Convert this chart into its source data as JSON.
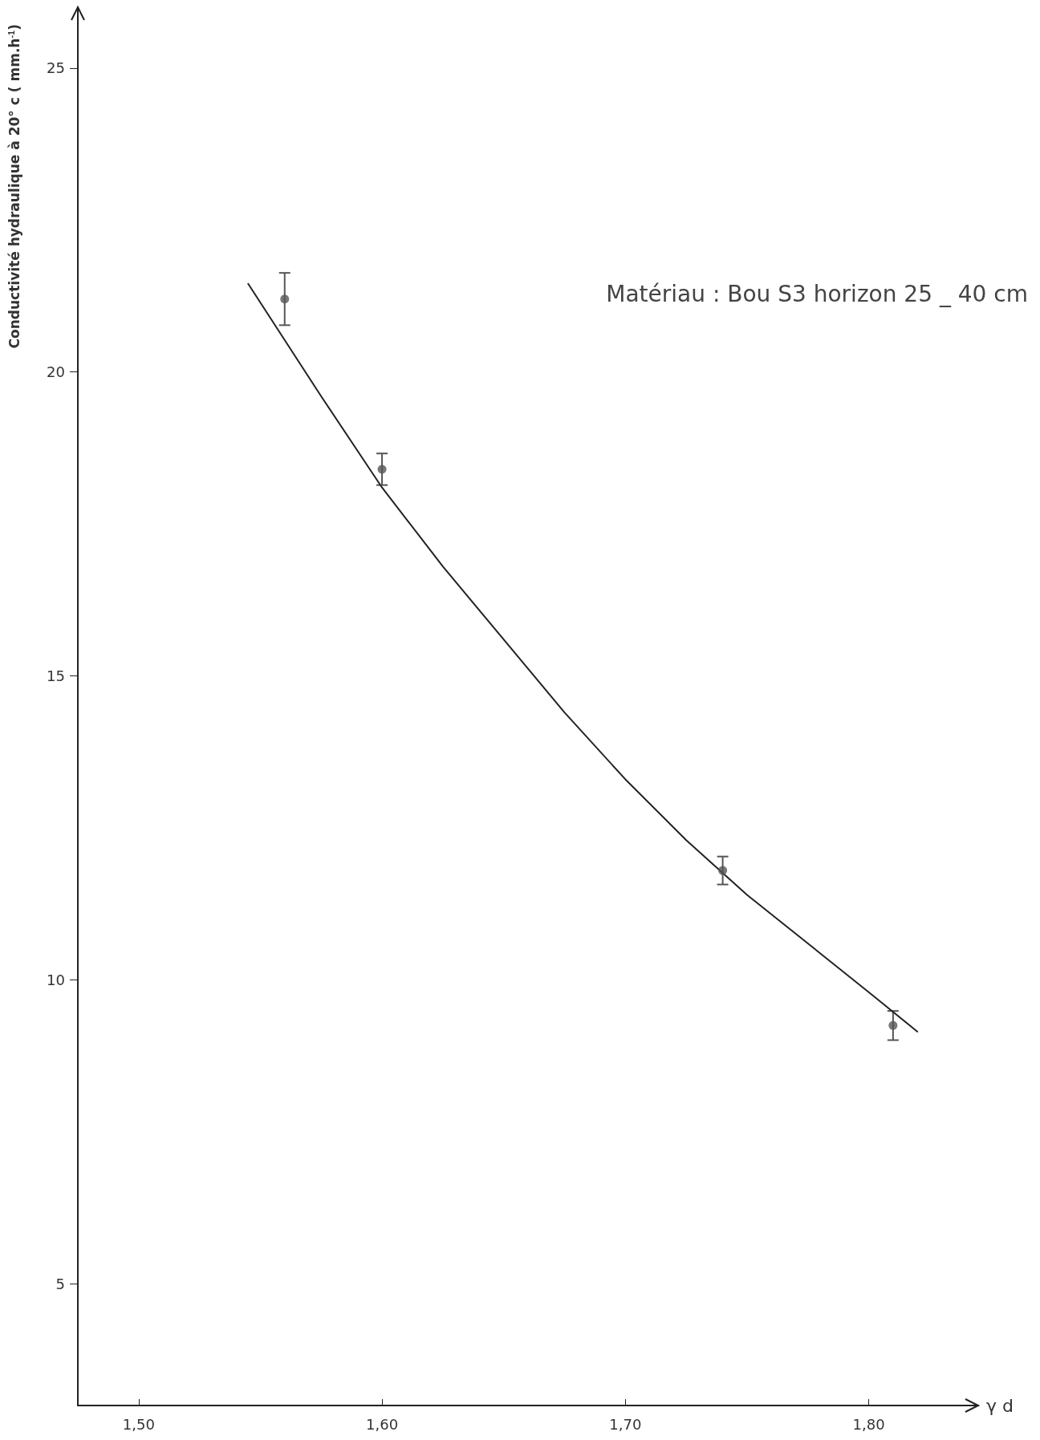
{
  "chart_data": {
    "type": "scatter",
    "xlabel": "γ d",
    "ylabel": "Conductivité hydraulique à 20° c ( mm.h$^{-1}$)",
    "annotations": [
      "Matériau : Bou S3 horizon 25 _ 40 cm"
    ],
    "xlim": [
      1.475,
      1.845
    ],
    "ylim": [
      3,
      26
    ],
    "xticks": [
      {
        "value": 1.5,
        "label": "1,50"
      },
      {
        "value": 1.6,
        "label": "1,60"
      },
      {
        "value": 1.7,
        "label": "1,70"
      },
      {
        "value": 1.8,
        "label": "1,80"
      }
    ],
    "yticks": [
      5,
      10,
      15,
      20,
      25
    ],
    "grid": false,
    "series": [
      {
        "color": "#555555",
        "marker": "circle",
        "x": [
          1.56,
          1.6,
          1.74,
          1.81
        ],
        "values": [
          21.2,
          18.4,
          11.8,
          9.25
        ],
        "errors": [
          0.43,
          0.26,
          0.23,
          0.24
        ]
      },
      {
        "type": "line",
        "color": "#222222",
        "marker": "none",
        "line_style": "solid",
        "x": [
          1.545,
          1.575,
          1.6,
          1.625,
          1.65,
          1.675,
          1.7,
          1.725,
          1.75,
          1.775,
          1.8,
          1.82
        ],
        "values": [
          21.45,
          19.6,
          18.1,
          16.8,
          15.6,
          14.4,
          13.3,
          12.3,
          11.4,
          10.6,
          9.8,
          9.15
        ]
      }
    ]
  }
}
